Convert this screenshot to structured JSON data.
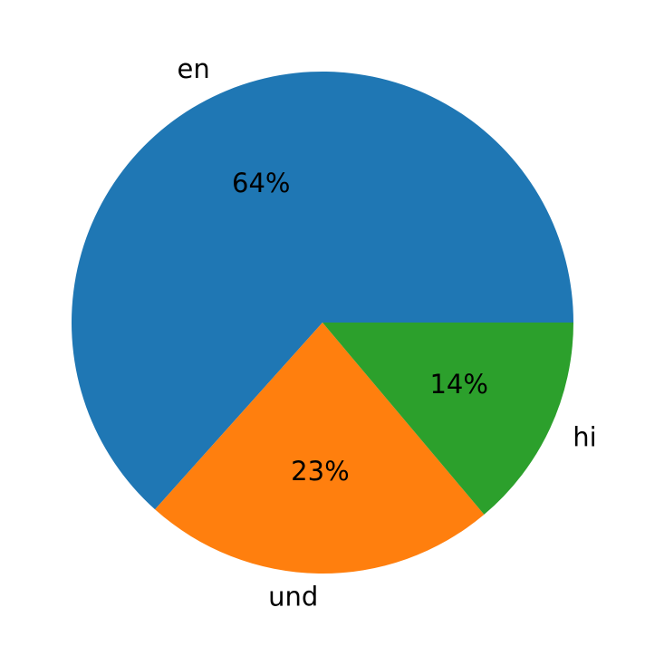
{
  "chart_data": {
    "type": "pie",
    "categories": [
      "en",
      "und",
      "hi"
    ],
    "values": [
      64,
      23,
      14
    ],
    "value_labels": [
      "64%",
      "23%",
      "14%"
    ],
    "colors": [
      "#1f77b4",
      "#ff7f0e",
      "#2ca02c"
    ]
  }
}
